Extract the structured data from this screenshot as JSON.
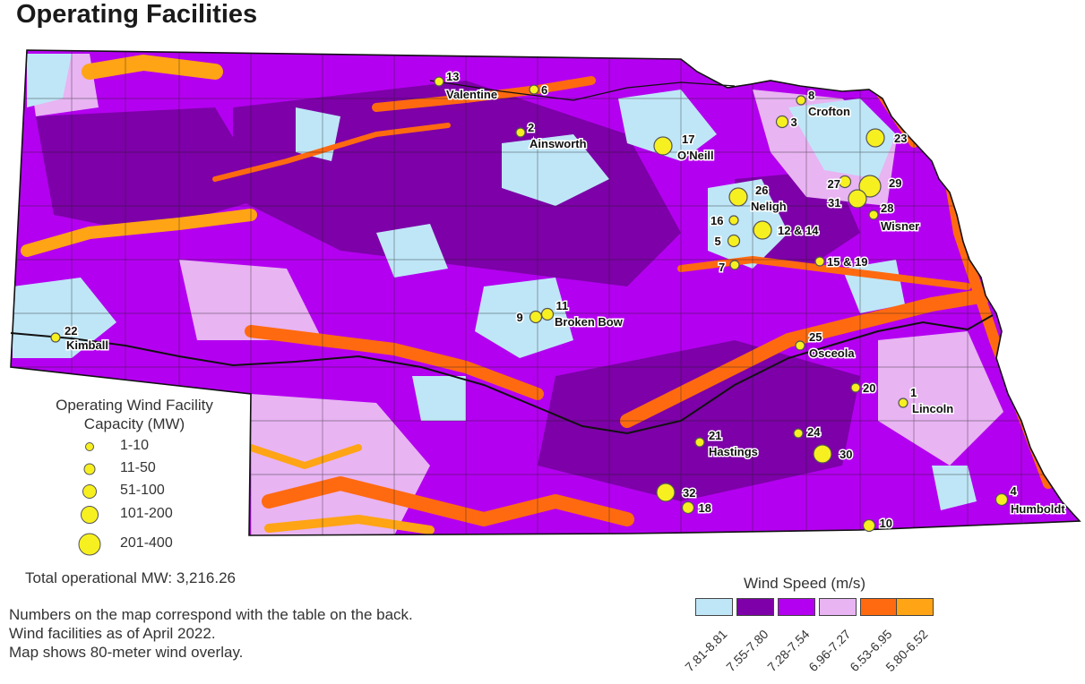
{
  "title": "Operating Facilities",
  "map": {
    "colors": {
      "wind_7_81_8_81": "#bfe6f7",
      "wind_7_55_7_80": "#7d00a8",
      "wind_7_28_7_54": "#b400f0",
      "wind_6_96_7_27": "#e8b4f2",
      "wind_6_53_6_95": "#ff6a10",
      "wind_5_80_6_52": "#ffa414",
      "marker": "#f7f020"
    },
    "facilities": [
      {
        "num": "13",
        "city": "Valentine",
        "size": 1
      },
      {
        "num": "6",
        "city": "",
        "size": 1
      },
      {
        "num": "8",
        "city": "Crofton",
        "size": 1
      },
      {
        "num": "3",
        "city": "",
        "size": 2
      },
      {
        "num": "2",
        "city": "Ainsworth",
        "size": 1
      },
      {
        "num": "17",
        "city": "O'Neill",
        "size": 4
      },
      {
        "num": "23",
        "city": "",
        "size": 4
      },
      {
        "num": "27",
        "city": "",
        "size": 2
      },
      {
        "num": "29",
        "city": "",
        "size": 5
      },
      {
        "num": "31",
        "city": "",
        "size": 4
      },
      {
        "num": "26",
        "city": "Neligh",
        "size": 4
      },
      {
        "num": "28",
        "city": "Wisner",
        "size": 1
      },
      {
        "num": "16",
        "city": "",
        "size": 1
      },
      {
        "num": "12 & 14",
        "city": "",
        "size": 4
      },
      {
        "num": "5",
        "city": "",
        "size": 2
      },
      {
        "num": "7",
        "city": "",
        "size": 1
      },
      {
        "num": "15 & 19",
        "city": "",
        "size": 1
      },
      {
        "num": "11",
        "city": "Broken Bow",
        "size": 2
      },
      {
        "num": "9",
        "city": "",
        "size": 2
      },
      {
        "num": "22",
        "city": "Kimball",
        "size": 1
      },
      {
        "num": "25",
        "city": "Osceola",
        "size": 1
      },
      {
        "num": "20",
        "city": "",
        "size": 1
      },
      {
        "num": "1",
        "city": "Lincoln",
        "size": 1
      },
      {
        "num": "21",
        "city": "Hastings",
        "size": 1
      },
      {
        "num": "24",
        "city": "",
        "size": 1
      },
      {
        "num": "30",
        "city": "",
        "size": 4
      },
      {
        "num": "32",
        "city": "",
        "size": 4
      },
      {
        "num": "18",
        "city": "",
        "size": 2
      },
      {
        "num": "10",
        "city": "",
        "size": 2
      },
      {
        "num": "4",
        "city": "Humboldt",
        "size": 2
      }
    ]
  },
  "capacity_legend": {
    "title_line1": "Operating Wind Facility",
    "title_line2": "Capacity (MW)",
    "items": [
      "1-10",
      "11-50",
      "51-100",
      "101-200",
      "201-400"
    ]
  },
  "total": "Total operational MW: 3,216.26",
  "notes": [
    "Numbers on the map correspond with the table on the back.",
    "Wind facilities as of April 2022.",
    "Map shows 80-meter wind overlay."
  ],
  "wind_legend": {
    "title": "Wind Speed (m/s)",
    "items": [
      {
        "label": "7.81-8.81",
        "color": "#bfe6f7"
      },
      {
        "label": "7.55-7.80",
        "color": "#7d00a8"
      },
      {
        "label": "7.28-7.54",
        "color": "#b400f0"
      },
      {
        "label": "6.96-7.27",
        "color": "#e8b4f2"
      },
      {
        "label": "6.53-6.95",
        "color": "#ff6a10"
      },
      {
        "label": "5.80-6.52",
        "color": "#ffa414"
      }
    ]
  }
}
